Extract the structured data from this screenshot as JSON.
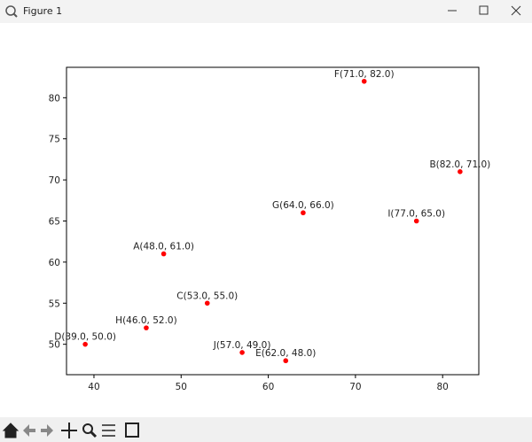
{
  "window_title": "Figure 1",
  "chart_data": {
    "type": "scatter",
    "x": [
      48,
      82,
      53,
      39,
      62,
      71,
      64,
      46,
      77,
      57
    ],
    "y": [
      61,
      71,
      55,
      50,
      48,
      82,
      66,
      52,
      65,
      49
    ],
    "labels": [
      "A(48.0, 61.0)",
      "B(82.0, 71.0)",
      "C(53.0, 55.0)",
      "D(39.0, 50.0)",
      "E(62.0, 48.0)",
      "F(71.0, 82.0)",
      "G(64.0, 66.0)",
      "H(46.0, 52.0)",
      "I(77.0, 65.0)",
      "J(57.0, 49.0)"
    ],
    "color": "#ff0000",
    "xlim": [
      36.85,
      84.15
    ],
    "ylim": [
      46.3,
      83.7
    ],
    "xticks": [
      40,
      50,
      60,
      70,
      80
    ],
    "yticks": [
      50,
      55,
      60,
      65,
      70,
      75,
      80
    ],
    "grid": false
  }
}
